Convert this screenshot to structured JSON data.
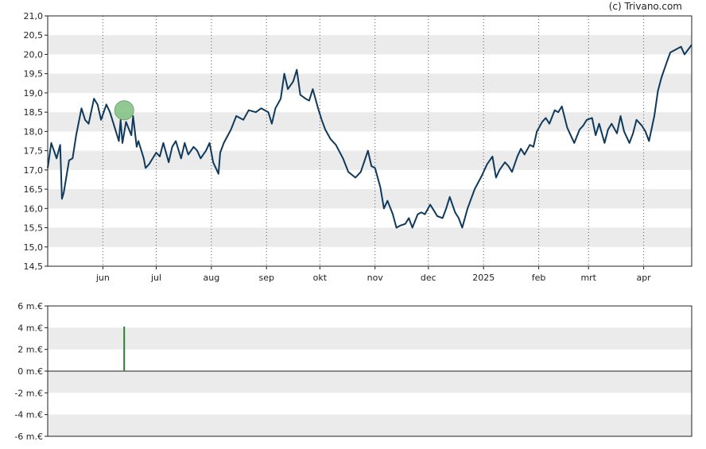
{
  "credit": "(c) Trivano.com",
  "colors": {
    "price_line": "#0f3a5c",
    "band": "#ebebeb",
    "volume_bar": "#2e7d32",
    "marker_fill": "#7fbf7f",
    "axis": "#222222"
  },
  "chart_data": [
    {
      "type": "line",
      "title": "",
      "xlabel": "",
      "ylabel": "",
      "ylim": [
        14.5,
        21.0
      ],
      "yticks": [
        "21,0",
        "20,5",
        "20,0",
        "19,5",
        "19,0",
        "18,5",
        "18,0",
        "17,5",
        "17,0",
        "16,5",
        "16,0",
        "15,5",
        "15,0",
        "14,5"
      ],
      "xticks": [
        {
          "label": "jun",
          "date": "2024-06-01"
        },
        {
          "label": "jul",
          "date": "2024-07-01"
        },
        {
          "label": "aug",
          "date": "2024-08-01"
        },
        {
          "label": "sep",
          "date": "2024-09-01"
        },
        {
          "label": "okt",
          "date": "2024-10-01"
        },
        {
          "label": "nov",
          "date": "2024-11-01"
        },
        {
          "label": "dec",
          "date": "2024-12-01"
        },
        {
          "label": "2025",
          "date": "2025-01-01"
        },
        {
          "label": "feb",
          "date": "2025-02-01"
        },
        {
          "label": "mrt",
          "date": "2025-03-01"
        },
        {
          "label": "apr",
          "date": "2025-04-01"
        }
      ],
      "xlim": [
        "2024-05-01",
        "2025-04-28"
      ],
      "grid": "vertical dotted lines at month ticks, alternating horizontal bands",
      "marker": {
        "date": "2024-06-13",
        "value": 18.55
      },
      "series": [
        {
          "points": [
            [
              "2024-05-01",
              17.05
            ],
            [
              "2024-05-03",
              17.7
            ],
            [
              "2024-05-06",
              17.3
            ],
            [
              "2024-05-08",
              17.65
            ],
            [
              "2024-05-09",
              16.25
            ],
            [
              "2024-05-10",
              16.4
            ],
            [
              "2024-05-13",
              17.25
            ],
            [
              "2024-05-15",
              17.3
            ],
            [
              "2024-05-17",
              17.9
            ],
            [
              "2024-05-20",
              18.6
            ],
            [
              "2024-05-22",
              18.3
            ],
            [
              "2024-05-24",
              18.2
            ],
            [
              "2024-05-27",
              18.85
            ],
            [
              "2024-05-29",
              18.7
            ],
            [
              "2024-05-31",
              18.3
            ],
            [
              "2024-06-03",
              18.7
            ],
            [
              "2024-06-05",
              18.5
            ],
            [
              "2024-06-07",
              18.2
            ],
            [
              "2024-06-10",
              17.75
            ],
            [
              "2024-06-11",
              18.3
            ],
            [
              "2024-06-12",
              17.7
            ],
            [
              "2024-06-14",
              18.25
            ],
            [
              "2024-06-17",
              17.9
            ],
            [
              "2024-06-18",
              18.4
            ],
            [
              "2024-06-20",
              17.6
            ],
            [
              "2024-06-21",
              17.75
            ],
            [
              "2024-06-24",
              17.3
            ],
            [
              "2024-06-25",
              17.05
            ],
            [
              "2024-06-27",
              17.15
            ],
            [
              "2024-07-01",
              17.45
            ],
            [
              "2024-07-03",
              17.35
            ],
            [
              "2024-07-05",
              17.7
            ],
            [
              "2024-07-08",
              17.2
            ],
            [
              "2024-07-10",
              17.6
            ],
            [
              "2024-07-12",
              17.75
            ],
            [
              "2024-07-15",
              17.3
            ],
            [
              "2024-07-17",
              17.7
            ],
            [
              "2024-07-19",
              17.4
            ],
            [
              "2024-07-22",
              17.6
            ],
            [
              "2024-07-24",
              17.5
            ],
            [
              "2024-07-26",
              17.3
            ],
            [
              "2024-07-29",
              17.5
            ],
            [
              "2024-07-31",
              17.7
            ],
            [
              "2024-08-02",
              17.2
            ],
            [
              "2024-08-05",
              16.9
            ],
            [
              "2024-08-06",
              17.45
            ],
            [
              "2024-08-08",
              17.7
            ],
            [
              "2024-08-12",
              18.05
            ],
            [
              "2024-08-15",
              18.4
            ],
            [
              "2024-08-19",
              18.3
            ],
            [
              "2024-08-22",
              18.55
            ],
            [
              "2024-08-26",
              18.5
            ],
            [
              "2024-08-29",
              18.6
            ],
            [
              "2024-09-02",
              18.5
            ],
            [
              "2024-09-04",
              18.2
            ],
            [
              "2024-09-06",
              18.6
            ],
            [
              "2024-09-09",
              18.85
            ],
            [
              "2024-09-11",
              19.5
            ],
            [
              "2024-09-13",
              19.1
            ],
            [
              "2024-09-16",
              19.3
            ],
            [
              "2024-09-18",
              19.6
            ],
            [
              "2024-09-20",
              18.95
            ],
            [
              "2024-09-23",
              18.85
            ],
            [
              "2024-09-25",
              18.8
            ],
            [
              "2024-09-27",
              19.1
            ],
            [
              "2024-09-30",
              18.6
            ],
            [
              "2024-10-02",
              18.3
            ],
            [
              "2024-10-04",
              18.05
            ],
            [
              "2024-10-07",
              17.8
            ],
            [
              "2024-10-10",
              17.65
            ],
            [
              "2024-10-14",
              17.3
            ],
            [
              "2024-10-17",
              16.95
            ],
            [
              "2024-10-21",
              16.8
            ],
            [
              "2024-10-24",
              16.95
            ],
            [
              "2024-10-28",
              17.5
            ],
            [
              "2024-10-30",
              17.1
            ],
            [
              "2024-11-01",
              17.05
            ],
            [
              "2024-11-04",
              16.55
            ],
            [
              "2024-11-06",
              16.0
            ],
            [
              "2024-11-08",
              16.2
            ],
            [
              "2024-11-11",
              15.85
            ],
            [
              "2024-11-13",
              15.5
            ],
            [
              "2024-11-15",
              15.55
            ],
            [
              "2024-11-18",
              15.6
            ],
            [
              "2024-11-20",
              15.75
            ],
            [
              "2024-11-22",
              15.5
            ],
            [
              "2024-11-25",
              15.85
            ],
            [
              "2024-11-27",
              15.9
            ],
            [
              "2024-11-29",
              15.85
            ],
            [
              "2024-12-02",
              16.1
            ],
            [
              "2024-12-04",
              15.95
            ],
            [
              "2024-12-06",
              15.8
            ],
            [
              "2024-12-09",
              15.75
            ],
            [
              "2024-12-11",
              16.0
            ],
            [
              "2024-12-13",
              16.3
            ],
            [
              "2024-12-16",
              15.9
            ],
            [
              "2024-12-18",
              15.75
            ],
            [
              "2024-12-20",
              15.5
            ],
            [
              "2024-12-23",
              16.0
            ],
            [
              "2024-12-27",
              16.5
            ],
            [
              "2024-12-31",
              16.85
            ],
            [
              "2025-01-03",
              17.15
            ],
            [
              "2025-01-06",
              17.35
            ],
            [
              "2025-01-08",
              16.8
            ],
            [
              "2025-01-10",
              17.0
            ],
            [
              "2025-01-13",
              17.2
            ],
            [
              "2025-01-15",
              17.1
            ],
            [
              "2025-01-17",
              16.95
            ],
            [
              "2025-01-20",
              17.35
            ],
            [
              "2025-01-22",
              17.55
            ],
            [
              "2025-01-24",
              17.4
            ],
            [
              "2025-01-27",
              17.65
            ],
            [
              "2025-01-29",
              17.6
            ],
            [
              "2025-01-31",
              18.0
            ],
            [
              "2025-02-03",
              18.25
            ],
            [
              "2025-02-05",
              18.35
            ],
            [
              "2025-02-07",
              18.2
            ],
            [
              "2025-02-10",
              18.55
            ],
            [
              "2025-02-12",
              18.5
            ],
            [
              "2025-02-14",
              18.65
            ],
            [
              "2025-02-17",
              18.1
            ],
            [
              "2025-02-19",
              17.9
            ],
            [
              "2025-02-21",
              17.7
            ],
            [
              "2025-02-24",
              18.05
            ],
            [
              "2025-02-26",
              18.15
            ],
            [
              "2025-02-28",
              18.3
            ],
            [
              "2025-03-03",
              18.35
            ],
            [
              "2025-03-05",
              17.9
            ],
            [
              "2025-03-07",
              18.2
            ],
            [
              "2025-03-10",
              17.7
            ],
            [
              "2025-03-12",
              18.05
            ],
            [
              "2025-03-14",
              18.2
            ],
            [
              "2025-03-17",
              17.95
            ],
            [
              "2025-03-19",
              18.4
            ],
            [
              "2025-03-21",
              18.0
            ],
            [
              "2025-03-24",
              17.7
            ],
            [
              "2025-03-26",
              17.95
            ],
            [
              "2025-03-28",
              18.3
            ],
            [
              "2025-03-31",
              18.15
            ],
            [
              "2025-04-02",
              18.0
            ],
            [
              "2025-04-04",
              17.75
            ],
            [
              "2025-04-07",
              18.4
            ],
            [
              "2025-04-09",
              19.05
            ],
            [
              "2025-04-11",
              19.4
            ],
            [
              "2025-04-14",
              19.8
            ],
            [
              "2025-04-16",
              20.05
            ],
            [
              "2025-04-18",
              20.1
            ],
            [
              "2025-04-22",
              20.2
            ],
            [
              "2025-04-24",
              20.0
            ],
            [
              "2025-04-28",
              20.25
            ]
          ]
        }
      ]
    },
    {
      "type": "bar",
      "title": "",
      "xlabel": "",
      "ylabel": "",
      "ylim": [
        -6,
        6
      ],
      "yticks": [
        "6 m.€",
        "4 m.€",
        "2 m.€",
        "0 m.€",
        "-2 m.€",
        "-4 m.€",
        "-6 m.€"
      ],
      "bars": [
        {
          "date": "2024-06-13",
          "value": 4.1
        }
      ]
    }
  ]
}
